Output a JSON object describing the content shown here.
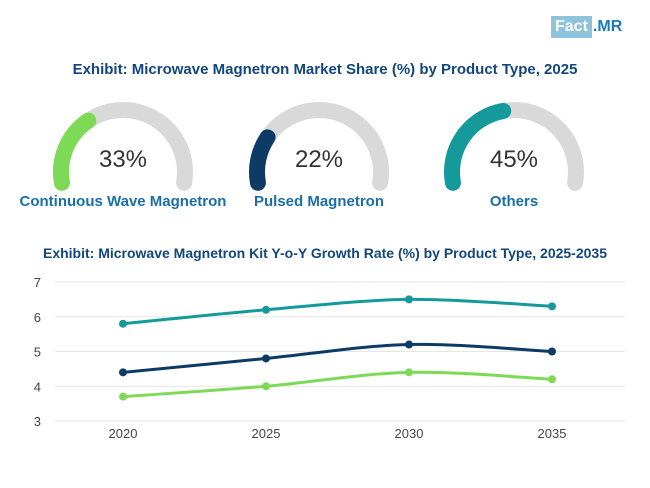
{
  "logo": {
    "part1": "Fact",
    "dot": ".",
    "part2": "MR"
  },
  "title1": "Exhibit: Microwave Magnetron Market Share (%) by Product Type, 2025",
  "gauges": [
    {
      "value_text": "33%",
      "value": 33,
      "label": "Continuous Wave Magnetron",
      "color": "#7ed957"
    },
    {
      "value_text": "22%",
      "value": 22,
      "label": "Pulsed Magnetron",
      "color": "#0d3b66"
    },
    {
      "value_text": "45%",
      "value": 45,
      "label": "Others",
      "color": "#159a9c"
    }
  ],
  "title2": "Exhibit: Microwave Magnetron Kit Y-o-Y Growth Rate (%) by Product Type, 2025-2035",
  "colors": {
    "track": "#d9d9d9",
    "grid": "#e6e6e6",
    "axis_text": "#444444"
  },
  "chart_data": {
    "type": "line",
    "title": "Exhibit: Microwave Magnetron Kit Y-o-Y Growth Rate (%) by Product Type, 2025-2035",
    "categories": [
      "2020",
      "2025",
      "2030",
      "2035"
    ],
    "xlabel": "",
    "ylabel": "",
    "ylim": [
      3,
      7
    ],
    "yticks": [
      3,
      4,
      5,
      6,
      7
    ],
    "grid": true,
    "series": [
      {
        "name": "Others",
        "color": "#159a9c",
        "values": [
          5.8,
          6.2,
          6.5,
          6.3
        ]
      },
      {
        "name": "Pulsed Magnetron",
        "color": "#0d3b66",
        "values": [
          4.4,
          4.8,
          5.2,
          5.0
        ]
      },
      {
        "name": "Continuous Wave Magnetron",
        "color": "#7ed957",
        "values": [
          3.7,
          4.0,
          4.4,
          4.2
        ]
      }
    ]
  }
}
